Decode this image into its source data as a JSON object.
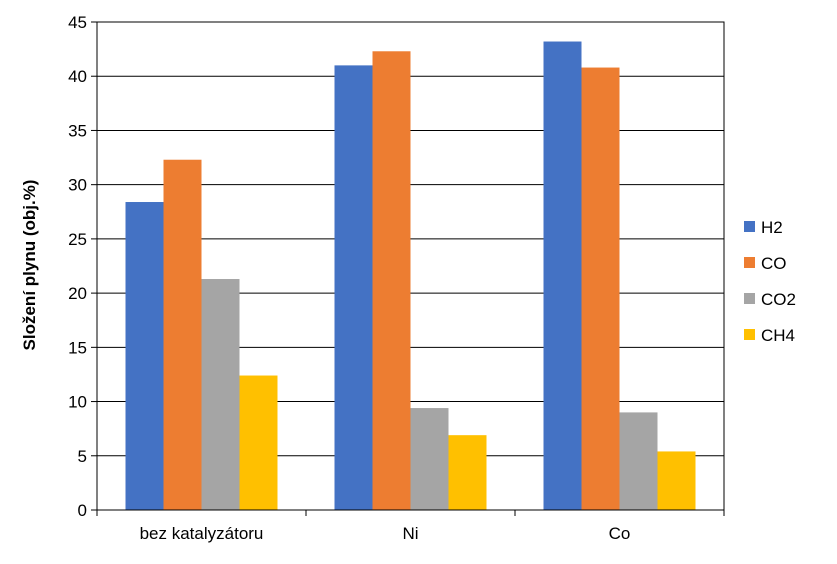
{
  "chart_data": {
    "type": "bar",
    "title": "",
    "xlabel": "",
    "ylabel": "Složení plynu (obj.%)",
    "categories": [
      "bez katalyzátoru",
      "Ni",
      "Co"
    ],
    "series": [
      {
        "name": "H2",
        "color": "#4472C4",
        "values": [
          28.4,
          41.0,
          43.2
        ]
      },
      {
        "name": "CO",
        "color": "#ED7D31",
        "values": [
          32.3,
          42.3,
          40.8
        ]
      },
      {
        "name": "CO2",
        "color": "#A5A5A5",
        "values": [
          21.3,
          9.4,
          9.0
        ]
      },
      {
        "name": "CH4",
        "color": "#FFC000",
        "values": [
          12.4,
          6.9,
          5.4
        ]
      }
    ],
    "ylim": [
      0,
      45
    ],
    "yticks": [
      "0",
      "5",
      "10",
      "15",
      "20",
      "25",
      "30",
      "35",
      "40",
      "45"
    ],
    "grid": true,
    "legend_position": "right"
  }
}
